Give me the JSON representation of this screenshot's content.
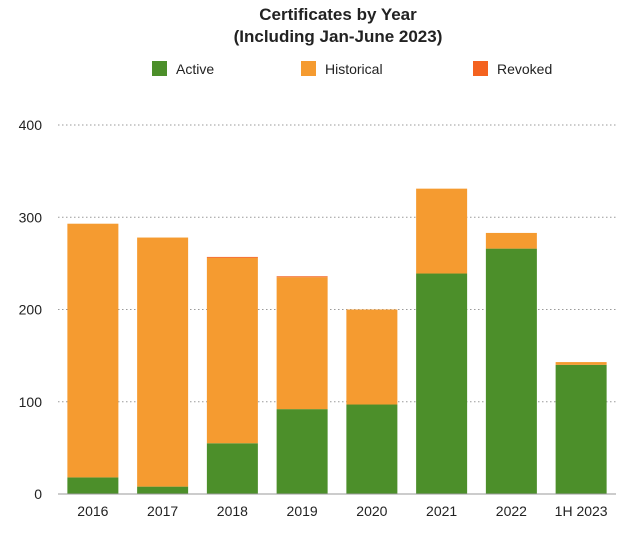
{
  "chart_data": {
    "type": "bar",
    "stacked": true,
    "title": "Certificates by Year",
    "subtitle": "(Including Jan-June 2023)",
    "xlabel": "",
    "ylabel": "",
    "categories": [
      "2016",
      "2017",
      "2018",
      "2019",
      "2020",
      "2021",
      "2022",
      "1H 2023"
    ],
    "series": [
      {
        "name": "Active",
        "color": "#4c8f2a",
        "values": [
          18,
          8,
          55,
          92,
          97,
          239,
          266,
          140
        ]
      },
      {
        "name": "Historical",
        "color": "#f59b30",
        "values": [
          275,
          270,
          201,
          143,
          103,
          92,
          17,
          3
        ]
      },
      {
        "name": "Revoked",
        "color": "#f4621f",
        "values": [
          0,
          0,
          1,
          1,
          0,
          0,
          0,
          0
        ]
      }
    ],
    "ylim": [
      0,
      400
    ],
    "yticks": [
      0,
      100,
      200,
      300,
      400
    ],
    "grid": true,
    "legend_position": "top"
  }
}
